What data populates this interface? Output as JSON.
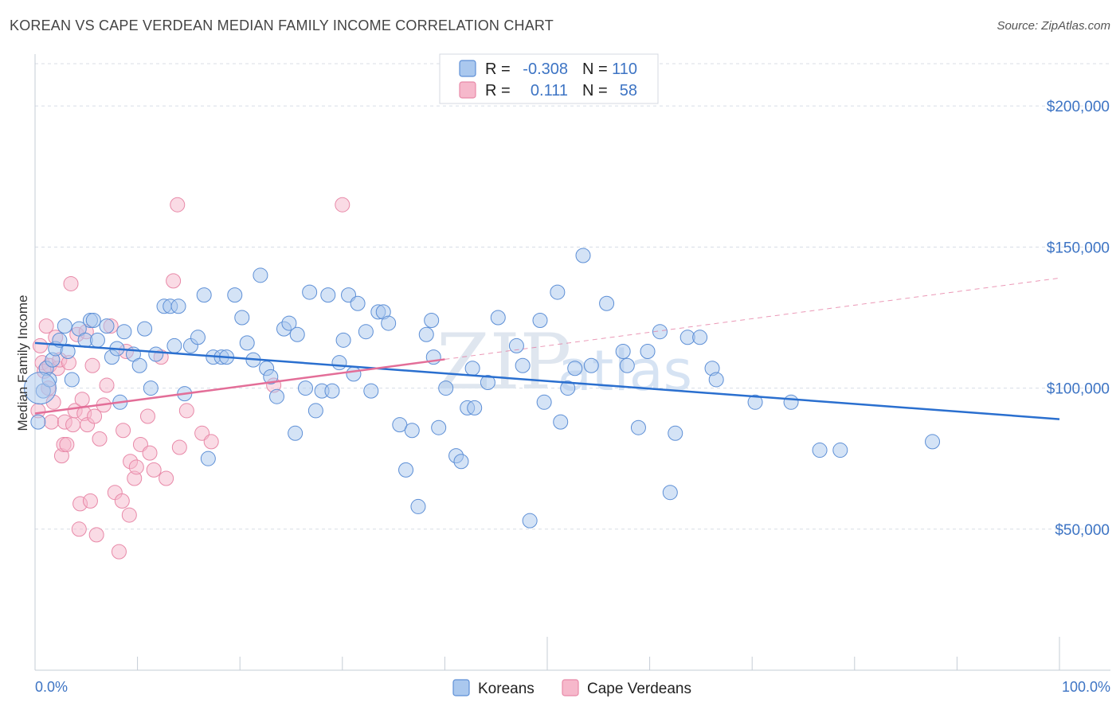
{
  "title": "KOREAN VS CAPE VERDEAN MEDIAN FAMILY INCOME CORRELATION CHART",
  "source": "Source: ZipAtlas.com",
  "watermark": {
    "zip": "ZIP",
    "atlas": "atlas"
  },
  "colors": {
    "korean_fill": "#aac8ee",
    "korean_stroke": "#5d8fd6",
    "korean_line": "#2a6fcf",
    "cape_fill": "#f6b8cb",
    "cape_stroke": "#e889a8",
    "cape_line": "#e36e98",
    "grid": "#d8dde6",
    "axis_text": "#3d74c4"
  },
  "legend": {
    "rows": [
      {
        "series": "Koreans",
        "r_label": "R =",
        "r_value": "-0.308",
        "n_label": "N =",
        "n_value": "110"
      },
      {
        "series": "Cape Verdeans",
        "r_label": "R =",
        "r_value": "0.111",
        "n_label": "N =",
        "n_value": "58"
      }
    ]
  },
  "chart_data": {
    "type": "scatter",
    "xlabel": "",
    "ylabel": "Median Family Income",
    "xlim": [
      0,
      100
    ],
    "ylim": [
      0,
      215000
    ],
    "x_tick_labels": {
      "min": "0.0%",
      "max": "100.0%"
    },
    "y_ticks": [
      {
        "value": 200000,
        "label": "$200,000"
      },
      {
        "value": 150000,
        "label": "$150,000"
      },
      {
        "value": 100000,
        "label": "$100,000"
      },
      {
        "value": 50000,
        "label": "$50,000"
      }
    ],
    "series": [
      {
        "name": "Koreans",
        "trend": {
          "x0": 0,
          "y0": 116000,
          "x1": 100,
          "y1": 89000,
          "dashed_from": null
        },
        "points": [
          [
            0.3,
            88000
          ],
          [
            0.8,
            99000
          ],
          [
            1.1,
            107000
          ],
          [
            1.4,
            103000
          ],
          [
            1.7,
            110000
          ],
          [
            2.0,
            114000
          ],
          [
            2.4,
            117000
          ],
          [
            2.9,
            122000
          ],
          [
            3.2,
            113000
          ],
          [
            3.6,
            103000
          ],
          [
            4.3,
            121000
          ],
          [
            4.9,
            117000
          ],
          [
            5.4,
            124000
          ],
          [
            5.7,
            124000
          ],
          [
            6.1,
            117000
          ],
          [
            7.0,
            122000
          ],
          [
            7.5,
            111000
          ],
          [
            8.0,
            114000
          ],
          [
            8.3,
            95000
          ],
          [
            8.7,
            120000
          ],
          [
            9.6,
            112000
          ],
          [
            10.2,
            108000
          ],
          [
            10.7,
            121000
          ],
          [
            11.3,
            100000
          ],
          [
            11.8,
            112000
          ],
          [
            12.6,
            129000
          ],
          [
            13.2,
            129000
          ],
          [
            13.6,
            115000
          ],
          [
            14.0,
            129000
          ],
          [
            14.6,
            98000
          ],
          [
            15.2,
            115000
          ],
          [
            15.9,
            118000
          ],
          [
            16.5,
            133000
          ],
          [
            16.9,
            75000
          ],
          [
            17.4,
            111000
          ],
          [
            18.2,
            111000
          ],
          [
            18.7,
            111000
          ],
          [
            19.5,
            133000
          ],
          [
            20.2,
            125000
          ],
          [
            20.7,
            116000
          ],
          [
            21.3,
            110000
          ],
          [
            22.0,
            140000
          ],
          [
            22.6,
            107000
          ],
          [
            23.0,
            104000
          ],
          [
            23.6,
            97000
          ],
          [
            24.3,
            121000
          ],
          [
            24.8,
            123000
          ],
          [
            25.4,
            84000
          ],
          [
            25.6,
            119000
          ],
          [
            26.4,
            100000
          ],
          [
            26.8,
            134000
          ],
          [
            27.4,
            92000
          ],
          [
            28.0,
            99000
          ],
          [
            28.6,
            133000
          ],
          [
            29.0,
            99000
          ],
          [
            29.7,
            109000
          ],
          [
            30.1,
            117000
          ],
          [
            30.6,
            133000
          ],
          [
            31.1,
            105000
          ],
          [
            31.5,
            130000
          ],
          [
            32.3,
            120000
          ],
          [
            32.8,
            99000
          ],
          [
            33.5,
            127000
          ],
          [
            34.0,
            127000
          ],
          [
            34.5,
            123000
          ],
          [
            35.6,
            87000
          ],
          [
            36.2,
            71000
          ],
          [
            36.8,
            85000
          ],
          [
            37.4,
            58000
          ],
          [
            38.2,
            119000
          ],
          [
            38.9,
            111000
          ],
          [
            38.7,
            124000
          ],
          [
            39.4,
            86000
          ],
          [
            40.1,
            100000
          ],
          [
            41.1,
            76000
          ],
          [
            41.6,
            74000
          ],
          [
            42.2,
            93000
          ],
          [
            42.7,
            107000
          ],
          [
            42.9,
            93000
          ],
          [
            44.2,
            102000
          ],
          [
            45.2,
            125000
          ],
          [
            47.0,
            115000
          ],
          [
            47.6,
            108000
          ],
          [
            48.3,
            53000
          ],
          [
            49.3,
            124000
          ],
          [
            49.7,
            95000
          ],
          [
            51.0,
            134000
          ],
          [
            51.3,
            88000
          ],
          [
            52.0,
            100000
          ],
          [
            52.7,
            107000
          ],
          [
            53.5,
            147000
          ],
          [
            54.3,
            108000
          ],
          [
            55.8,
            130000
          ],
          [
            57.4,
            113000
          ],
          [
            57.8,
            108000
          ],
          [
            58.9,
            86000
          ],
          [
            59.8,
            113000
          ],
          [
            61.0,
            120000
          ],
          [
            62.0,
            63000
          ],
          [
            62.5,
            84000
          ],
          [
            63.7,
            118000
          ],
          [
            64.9,
            118000
          ],
          [
            66.1,
            107000
          ],
          [
            66.5,
            103000
          ],
          [
            70.3,
            95000
          ],
          [
            73.8,
            95000
          ],
          [
            76.6,
            78000
          ],
          [
            78.6,
            78000
          ],
          [
            87.6,
            81000
          ],
          [
            0.5,
            100000
          ]
        ]
      },
      {
        "name": "Cape Verdeans",
        "trend": {
          "x0": 0,
          "y0": 91000,
          "x1": 100,
          "y1": 139000,
          "dashed_from": 40
        },
        "points": [
          [
            0.3,
            92000
          ],
          [
            0.5,
            115000
          ],
          [
            0.7,
            109000
          ],
          [
            0.9,
            106000
          ],
          [
            1.1,
            122000
          ],
          [
            1.3,
            100000
          ],
          [
            1.4,
            108000
          ],
          [
            1.6,
            88000
          ],
          [
            1.8,
            95000
          ],
          [
            2.0,
            118000
          ],
          [
            2.2,
            107000
          ],
          [
            2.4,
            110000
          ],
          [
            2.6,
            76000
          ],
          [
            2.8,
            80000
          ],
          [
            2.9,
            88000
          ],
          [
            3.1,
            80000
          ],
          [
            3.3,
            109000
          ],
          [
            3.5,
            137000
          ],
          [
            3.7,
            87000
          ],
          [
            3.9,
            92000
          ],
          [
            4.1,
            119000
          ],
          [
            4.3,
            50000
          ],
          [
            4.4,
            59000
          ],
          [
            4.6,
            96000
          ],
          [
            4.8,
            91000
          ],
          [
            5.0,
            120000
          ],
          [
            5.1,
            87000
          ],
          [
            5.4,
            60000
          ],
          [
            5.6,
            108000
          ],
          [
            5.8,
            90000
          ],
          [
            6.0,
            48000
          ],
          [
            6.3,
            82000
          ],
          [
            6.7,
            94000
          ],
          [
            7.0,
            101000
          ],
          [
            7.4,
            122000
          ],
          [
            7.8,
            63000
          ],
          [
            8.2,
            42000
          ],
          [
            8.5,
            60000
          ],
          [
            8.6,
            85000
          ],
          [
            8.9,
            113000
          ],
          [
            9.2,
            55000
          ],
          [
            9.3,
            74000
          ],
          [
            9.7,
            68000
          ],
          [
            9.9,
            72000
          ],
          [
            10.3,
            80000
          ],
          [
            11.0,
            90000
          ],
          [
            11.2,
            77000
          ],
          [
            11.6,
            71000
          ],
          [
            12.3,
            111000
          ],
          [
            12.8,
            68000
          ],
          [
            13.5,
            138000
          ],
          [
            13.9,
            165000
          ],
          [
            14.1,
            79000
          ],
          [
            14.8,
            92000
          ],
          [
            16.3,
            84000
          ],
          [
            17.2,
            81000
          ],
          [
            23.3,
            101000
          ],
          [
            30.0,
            165000
          ]
        ]
      }
    ]
  },
  "bottom_legend": [
    {
      "label": "Koreans"
    },
    {
      "label": "Cape Verdeans"
    }
  ]
}
